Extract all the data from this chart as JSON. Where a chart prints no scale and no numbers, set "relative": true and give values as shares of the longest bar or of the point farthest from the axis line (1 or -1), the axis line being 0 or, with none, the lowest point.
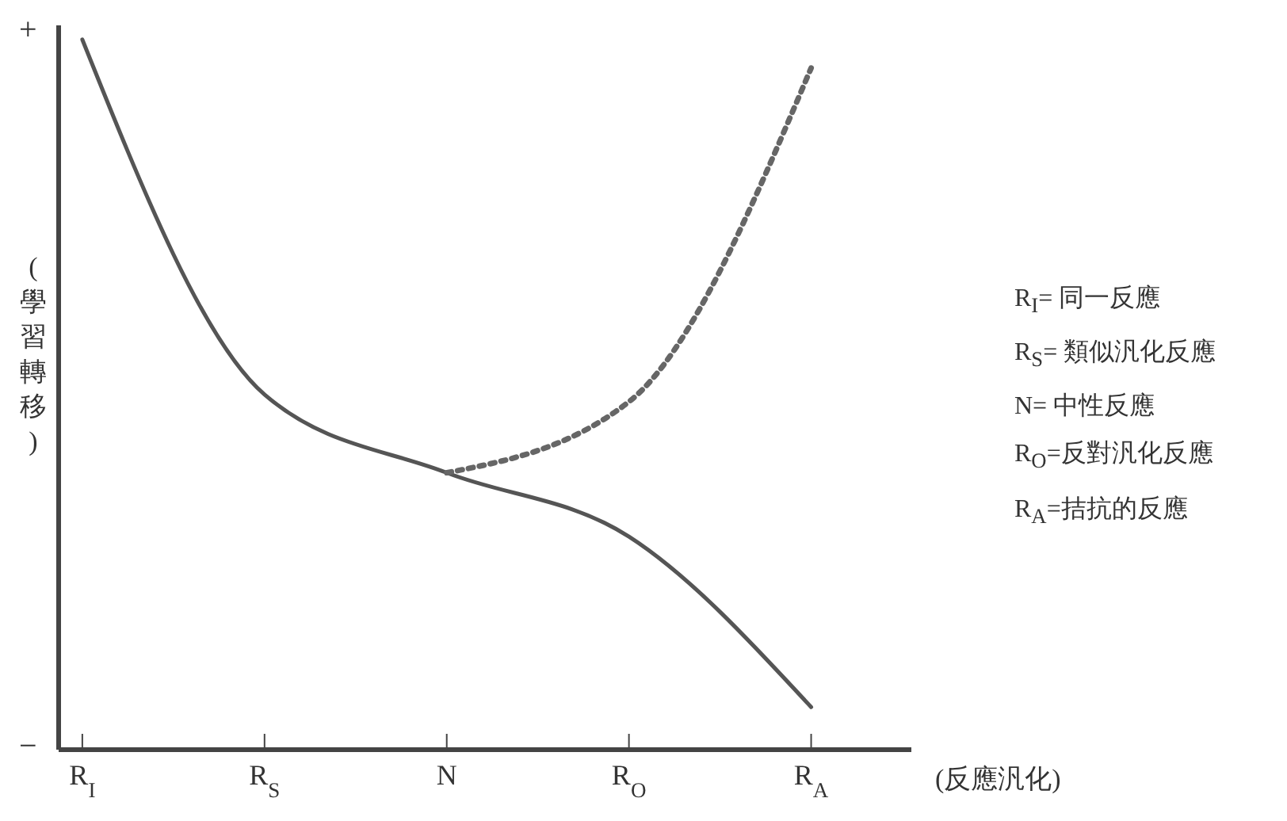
{
  "chart_data": {
    "type": "line",
    "relative": true,
    "xlabel": "(反應汎化)",
    "ylabel": "(學習轉移)",
    "categories": [
      "R$_{I}$",
      "R$_{S}$",
      "N",
      "R$_{O}$",
      "R$_{A}$"
    ],
    "series": [
      {
        "color": "#555555",
        "line_style": "solid",
        "values": [
          1,
          0.5,
          0.39,
          0.3,
          0.06
        ]
      },
      {
        "color": "#666666",
        "line_style": "dotted",
        "values": [
          null,
          null,
          0.39,
          0.49,
          0.96
        ]
      }
    ],
    "annotations": [
      "+",
      "−",
      "R$_{I}$= 同一反應",
      "R$_{S}$= 類似汎化反應",
      "N=  中性反應",
      "R$_{O}$=反對汎化反應",
      "R$_{A}$=拮抗的反應"
    ],
    "grid": false,
    "legend": false,
    "marker": "none"
  }
}
